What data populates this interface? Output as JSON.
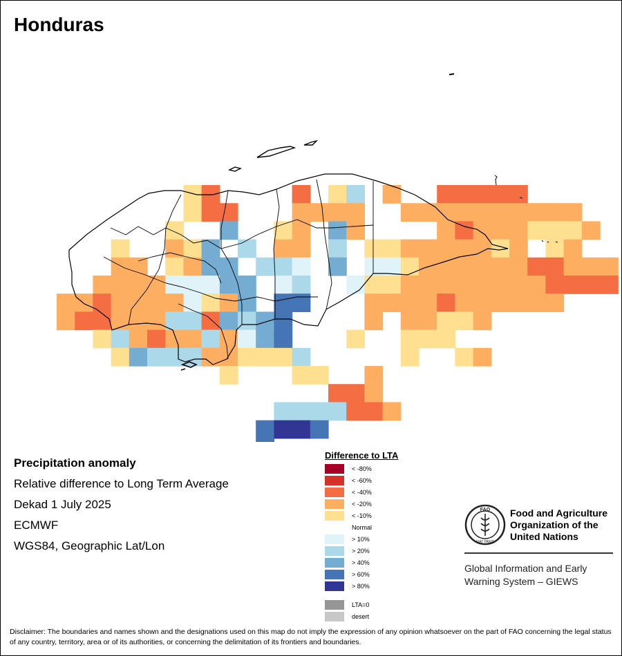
{
  "map_title": "Honduras",
  "info": {
    "heading": "Precipitation anomaly",
    "subtitle": "Relative difference to Long Term Average",
    "period": "Dekad 1 July 2025",
    "source": "ECMWF",
    "projection": "WGS84, Geographic Lat/Lon"
  },
  "legend": {
    "title": "Difference to LTA",
    "classes": [
      {
        "label": "< -80%",
        "color": "#a50026"
      },
      {
        "label": "< -60%",
        "color": "#d73027"
      },
      {
        "label": "< -40%",
        "color": "#f46d43"
      },
      {
        "label": "< -20%",
        "color": "#fdae61"
      },
      {
        "label": "< -10%",
        "color": "#fee090"
      },
      {
        "label": "Normal",
        "color": "#ffffff"
      },
      {
        "label": "> 10%",
        "color": "#e0f3f8"
      },
      {
        "label": "> 20%",
        "color": "#abd9e9"
      },
      {
        "label": "> 40%",
        "color": "#74add1"
      },
      {
        "label": "> 60%",
        "color": "#4575b4"
      },
      {
        "label": "> 80%",
        "color": "#313695"
      }
    ],
    "extra": [
      {
        "label": "LTA=0",
        "color": "#969696"
      },
      {
        "label": "desert",
        "color": "#c8c8c8"
      }
    ]
  },
  "org": {
    "name_line1": "Food and Agriculture",
    "name_line2": "Organization of the",
    "name_line3": "United Nations",
    "system_line1": "Global Information and Early",
    "system_line2": "Warning System – GIEWS",
    "logo_text": "FAO",
    "logo_motto": "FIAT PANIS"
  },
  "disclaimer": "Disclaimer: The boundaries and names shown and the designations used on this map do not imply the expression of any opinion whatsoever on the part of FAO concerning the legal status of any country, territory, area or of its authorities, or concerning the delimitation of its frontiers and boundaries."
}
